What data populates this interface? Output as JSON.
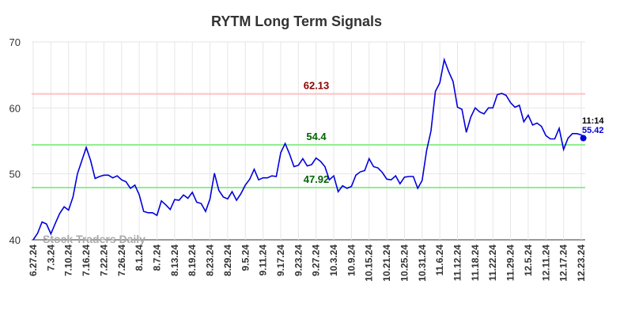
{
  "chart_data": {
    "type": "line",
    "title": "RYTM Long Term Signals",
    "watermark": "Stock Traders Daily",
    "last_time": "11:14",
    "color": "#0000dd",
    "grid": true,
    "ylim": [
      40,
      70
    ],
    "yticks": [
      40,
      50,
      60,
      70
    ],
    "hlines": [
      {
        "value": 62.13,
        "color": "#ffc0c0",
        "label_color": "#8b0000"
      },
      {
        "value": 54.4,
        "color": "#90ee90",
        "label_color": "#006400"
      },
      {
        "value": 47.92,
        "color": "#90ee90",
        "label_color": "#006400"
      }
    ],
    "categories": [
      "6.27.24",
      null,
      null,
      null,
      "7.3.24",
      null,
      null,
      null,
      "7.10.24",
      null,
      null,
      null,
      "7.16.24",
      null,
      null,
      null,
      "7.22.24",
      null,
      null,
      null,
      "7.26.24",
      null,
      null,
      null,
      "8.1.24",
      null,
      null,
      null,
      "8.7.24",
      null,
      null,
      null,
      "8.13.24",
      null,
      null,
      null,
      "8.19.24",
      null,
      null,
      null,
      "8.23.24",
      null,
      null,
      null,
      "8.29.24",
      null,
      null,
      null,
      "9.5.24",
      null,
      null,
      null,
      "9.11.24",
      null,
      null,
      null,
      "9.17.24",
      null,
      null,
      null,
      "9.23.24",
      null,
      null,
      null,
      "9.27.24",
      null,
      null,
      null,
      "10.3.24",
      null,
      null,
      null,
      "10.9.24",
      null,
      null,
      null,
      "10.15.24",
      null,
      null,
      null,
      "10.21.24",
      null,
      null,
      null,
      "10.25.24",
      null,
      null,
      null,
      "10.31.24",
      null,
      null,
      null,
      "11.6.24",
      null,
      null,
      null,
      "11.12.24",
      null,
      null,
      null,
      "11.18.24",
      null,
      null,
      null,
      "11.22.24",
      null,
      null,
      null,
      "11.29.24",
      null,
      null,
      null,
      "12.5.24",
      null,
      null,
      null,
      "12.11.24",
      null,
      null,
      null,
      "12.17.24",
      null,
      null,
      null,
      "12.23.24",
      null
    ],
    "values": [
      40.0,
      41,
      42.7,
      42.4,
      40.9,
      42.5,
      44,
      45,
      44.5,
      46.5,
      50,
      52,
      54,
      52,
      49.3,
      49.6,
      49.8,
      49.8,
      49.4,
      49.7,
      49.1,
      48.8,
      47.8,
      48.3,
      46.8,
      44.3,
      44.1,
      44.1,
      43.7,
      45.9,
      45.3,
      44.6,
      46.1,
      46.0,
      46.8,
      46.3,
      47.2,
      45.7,
      45.5,
      44.3,
      46.2,
      50.1,
      47.5,
      46.5,
      46.2,
      47.3,
      46.0,
      47,
      48.3,
      49.2,
      50.7,
      49.1,
      49.4,
      49.4,
      49.7,
      49.6,
      53.2,
      54.6,
      53,
      51.1,
      51.3,
      52.3,
      51.2,
      51.4,
      52.4,
      51.9,
      51.1,
      49.1,
      49.7,
      47.3,
      48.2,
      47.8,
      48.1,
      49.8,
      50.3,
      50.5,
      52.3,
      51.1,
      50.9,
      50.2,
      49.2,
      49.1,
      49.7,
      48.5,
      49.5,
      49.6,
      49.6,
      47.8,
      49.0,
      53.5,
      56.5,
      62.5,
      63.8,
      67.3,
      65.5,
      64,
      60.1,
      59.8,
      56.3,
      58.6,
      60,
      59.4,
      59.1,
      60,
      60,
      62,
      62.2,
      61.9,
      60.8,
      60.1,
      60.4,
      57.9,
      58.9,
      57.4,
      57.7,
      57.2,
      55.8,
      55.3,
      55.3,
      56.9,
      53.7,
      55.4,
      56.1,
      56.1,
      55.9,
      55.42
    ]
  }
}
